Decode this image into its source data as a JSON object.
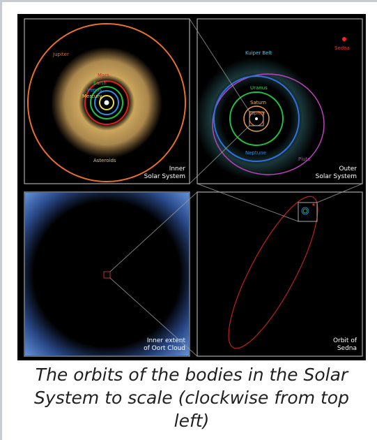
{
  "panels": [
    {
      "title": [
        "Inner",
        "Solar System"
      ],
      "labels": [
        "Jupiter",
        "Mars",
        "Earth",
        "Venus",
        "Mercury",
        "Asteroids"
      ]
    },
    {
      "title": [
        "Outer",
        "Solar System"
      ],
      "labels": [
        "Kuiper Belt",
        "Sedna",
        "Uranus",
        "Saturn",
        "Jupiter",
        "Neptune",
        "Pluto"
      ]
    },
    {
      "title": [
        "Inner extent",
        "of Oort Cloud"
      ]
    },
    {
      "title": [
        "Orbit of",
        "Sedna"
      ]
    }
  ],
  "caption": "The orbits of the bodies in the Solar System to scale (clockwise from top left)"
}
